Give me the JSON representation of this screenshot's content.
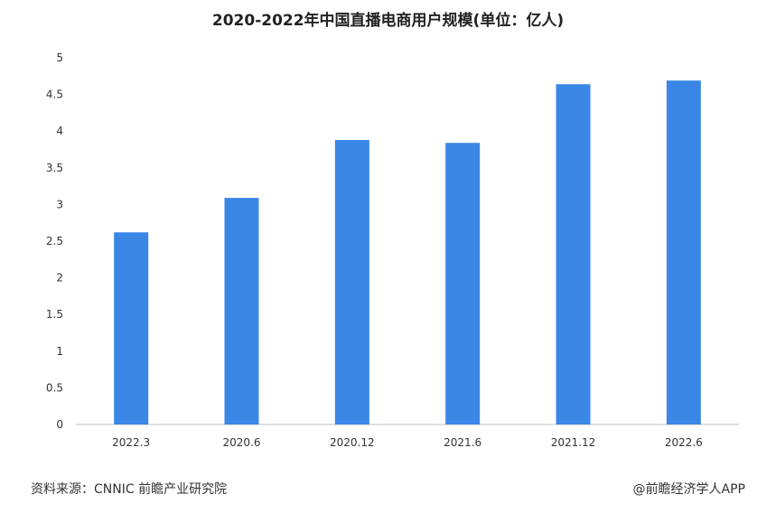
{
  "chart_data": {
    "type": "bar",
    "title": "2020-2022年中国直播电商用户规模(单位：亿人)",
    "categories": [
      "2022.3",
      "2020.6",
      "2020.12",
      "2021.6",
      "2021.12",
      "2022.6"
    ],
    "values": [
      2.62,
      3.09,
      3.88,
      3.84,
      4.64,
      4.69
    ],
    "ylim": [
      0,
      5
    ],
    "yticks": [
      0,
      0.5,
      1,
      1.5,
      2,
      2.5,
      3,
      3.5,
      4,
      4.5,
      5
    ],
    "grid": false,
    "legend": "none",
    "bar_color": "#3a87e6"
  },
  "footer": {
    "source": "资料来源：CNNIC 前瞻产业研究院",
    "brand": "@前瞻经济学人APP"
  }
}
